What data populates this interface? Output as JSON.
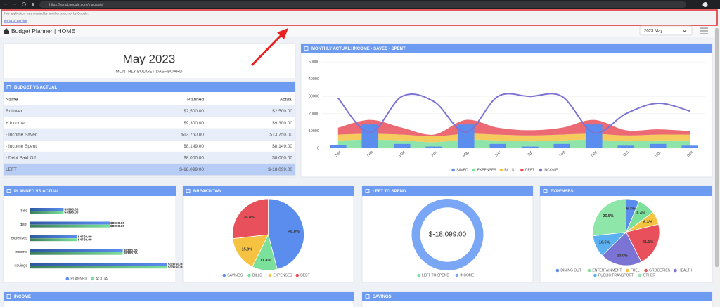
{
  "browser": {
    "url": "https://script.google.com/macros/s/"
  },
  "banner": {
    "message": "This application was created by another user, not by Google.",
    "link": "Terms of Service"
  },
  "header": {
    "title": "Budget Planner | HOME",
    "period": "2023 May"
  },
  "summary": {
    "title": "May 2023",
    "subtitle": "MONTHLY BUDGET DASHBOARD"
  },
  "budget_table": {
    "title": "BUDGET VS ACTUAL",
    "columns": [
      "Name",
      "Planned",
      "Actual"
    ],
    "rows": [
      [
        "Rollover",
        "$2,500.00",
        "$2,500.00"
      ],
      [
        "+ Income",
        "$9,300.00",
        "$9,300.00"
      ],
      [
        "- Income Saved",
        "$13,750.00",
        "$13,750.00"
      ],
      [
        "- Income Spent",
        "$8,149.00",
        "$8,149.00"
      ],
      [
        "- Debt Paid Off",
        "$8,000.00",
        "$8,000.00"
      ],
      [
        "LEFT",
        "$-18,099.00",
        "$-18,099.00"
      ]
    ]
  },
  "charts": [
    {
      "type": "mixed",
      "title": "MONTHLY ACTUAL: INCOME - SAVED - SPENT",
      "categories": [
        "Jan",
        "Feb",
        "Mar",
        "Apr",
        "May",
        "Jun",
        "Jul",
        "Aug",
        "Sep",
        "Oct",
        "Nov",
        "Dec"
      ],
      "ylim": [
        0,
        50000
      ],
      "yticks": [
        0,
        10000,
        20000,
        30000,
        40000,
        50000
      ],
      "grid": true,
      "series": [
        {
          "name": "SAVED",
          "type": "bar",
          "color": "#5b8def",
          "values": [
            2000,
            13750,
            2500,
            1000,
            13750,
            2500,
            1000,
            2500,
            13750,
            1500,
            2500,
            1500
          ]
        },
        {
          "name": "EXPENSES",
          "type": "area",
          "color": "#7be09a",
          "values": [
            4500,
            5000,
            4500,
            3500,
            5000,
            4500,
            4000,
            4500,
            5000,
            4000,
            4500,
            4500
          ]
        },
        {
          "name": "BILLS",
          "type": "area",
          "color": "#f5c242",
          "values": [
            3400,
            3400,
            3400,
            3400,
            3400,
            3400,
            3400,
            3400,
            3400,
            3400,
            3400,
            3400
          ]
        },
        {
          "name": "DEBT",
          "type": "area",
          "color": "#e8505b",
          "values": [
            4000,
            8000,
            4000,
            1000,
            8000,
            4000,
            3000,
            4000,
            8000,
            3000,
            3000,
            2000
          ]
        },
        {
          "name": "INCOME",
          "type": "line",
          "color": "#7c74d4",
          "values": [
            29000,
            9000,
            30000,
            27000,
            9300,
            30000,
            30000,
            30000,
            9000,
            20000,
            26000,
            21500
          ]
        }
      ]
    },
    {
      "type": "bar",
      "orientation": "horizontal",
      "title": "PLANNED VS ACTUAL",
      "categories": [
        "bills",
        "debt",
        "expenses",
        "income",
        "savings"
      ],
      "series": [
        {
          "name": "PLANNED",
          "color": "#5b8def",
          "values": [
            3398,
            8000,
            4750,
            9300,
            13750
          ],
          "value_labels": [
            "$3398.00",
            "$8000.00",
            "$4750.00",
            "$9300.00",
            "$13750.00"
          ]
        },
        {
          "name": "ACTUAL",
          "color": "#7be09a",
          "values": [
            3398,
            8000,
            4750,
            9300,
            13750
          ],
          "value_labels": [
            "$3398.00",
            "$8000.00",
            "$4750.00",
            "$9300.00",
            "$13750.00"
          ]
        }
      ]
    },
    {
      "type": "pie",
      "title": "BREAKDOWN",
      "categories": [
        "SAVINGS",
        "BILLS",
        "EXPENSES",
        "DEBT"
      ],
      "values": [
        46.0,
        11.4,
        15.9,
        26.8
      ],
      "value_labels": [
        "46.0%",
        "11.4%",
        "15.9%",
        "26.8%"
      ],
      "colors": [
        "#5b8def",
        "#7be09a",
        "#f5c242",
        "#e8505b"
      ]
    },
    {
      "type": "doughnut",
      "title": "LEFT TO SPEND",
      "center_label": "$-18,099.00",
      "categories": [
        "LEFT TO SPEND",
        "INCOME"
      ],
      "values": [
        -18099,
        9300
      ],
      "colors": [
        "#7be09a",
        "#7aa7f5"
      ]
    },
    {
      "type": "pie",
      "title": "EXPENSES",
      "categories": [
        "DINING OUT",
        "ENTERTAINMENT",
        "FUEL",
        "GROCERIES",
        "HEALTH",
        "PUBLIC TRANSPORT",
        "OTHER"
      ],
      "values": [
        6.3,
        8.4,
        6.3,
        21.1,
        20.0,
        10.5,
        26.5
      ],
      "value_labels": [
        "6.3%",
        "8.4%",
        "6.3%",
        "21.1%",
        "20.0%",
        "10.5%",
        "26.5%"
      ],
      "colors": [
        "#5b8def",
        "#7be09a",
        "#f5c242",
        "#e8505b",
        "#7c74d4",
        "#5ab0f0",
        "#8ee6a8"
      ]
    }
  ],
  "sections": [
    "INCOME",
    "SAVINGS"
  ]
}
